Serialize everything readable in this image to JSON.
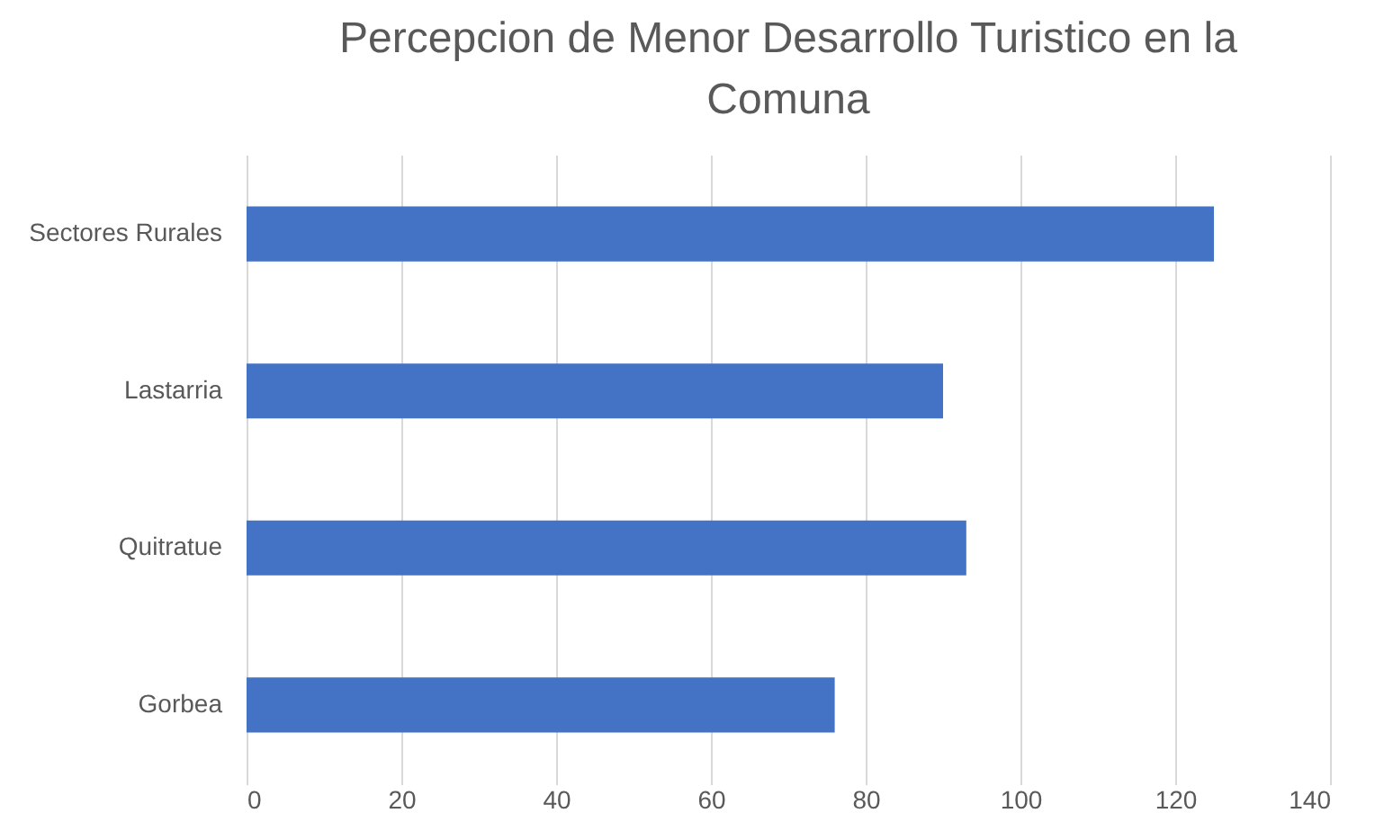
{
  "chart_data": {
    "type": "bar",
    "orientation": "horizontal",
    "title": [
      "Percepcion de Menor Desarrollo Turistico en la",
      "Comuna"
    ],
    "categories": [
      "Sectores Rurales",
      "Lastarria",
      "Quitratue",
      "Gorbea"
    ],
    "values": [
      125,
      90,
      93,
      76
    ],
    "color": "#4472c4",
    "xlim": [
      0,
      140
    ],
    "xticks": [
      0,
      20,
      40,
      60,
      80,
      100,
      120,
      140
    ],
    "grid": "x"
  }
}
